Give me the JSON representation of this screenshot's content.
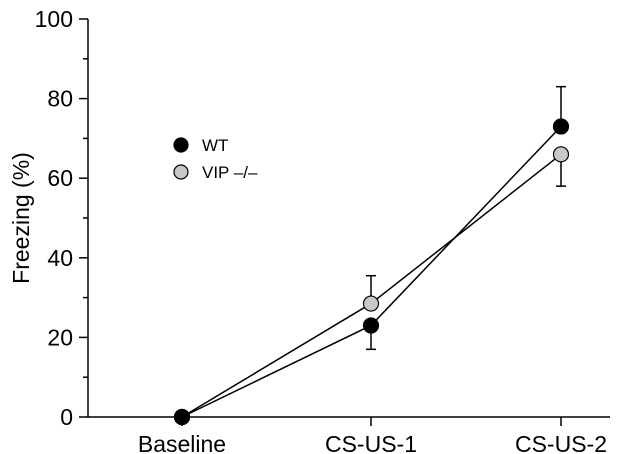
{
  "chart_data": {
    "type": "line",
    "title": "",
    "xlabel": "",
    "ylabel": "Freezing (%)",
    "categories": [
      "Baseline",
      "CS-US-1",
      "CS-US-2"
    ],
    "ylim": [
      0,
      100
    ],
    "yticks": [
      "0",
      "20",
      "40",
      "60",
      "80",
      "100"
    ],
    "grid": false,
    "legend_position": "upper-left",
    "series": [
      {
        "name": "WT",
        "values": [
          0,
          23,
          73
        ],
        "error": [
          0,
          6,
          10
        ],
        "marker_color": "#000000"
      },
      {
        "name": "VIP –/–",
        "values": [
          0,
          28.5,
          66
        ],
        "error": [
          0,
          7,
          8
        ],
        "marker_color": "#c8c8c8"
      }
    ]
  }
}
